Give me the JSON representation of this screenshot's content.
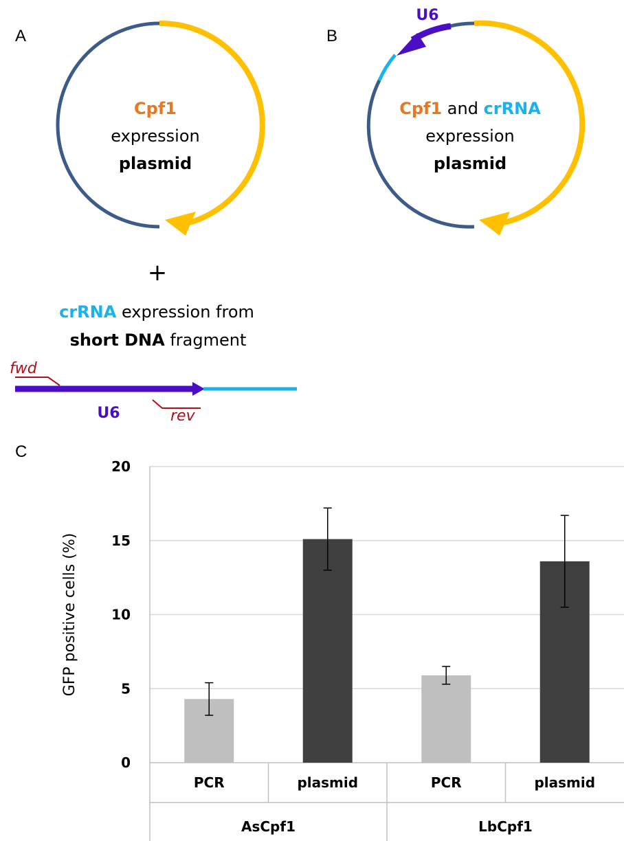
{
  "panels": {
    "a": {
      "label": "A",
      "plasmid": {
        "line1": "Cpf1",
        "line2": "expression",
        "line3": "plasmid"
      },
      "plus": "+",
      "fragment": {
        "line1_colored": "crRNA",
        "line1_rest": " expression from",
        "line2_bold": "short DNA",
        "line2_rest": " fragment",
        "promoter_label": "U6",
        "fwd_primer": "fwd",
        "rev_primer": "rev"
      }
    },
    "b": {
      "label": "B",
      "promoter_label": "U6",
      "plasmid": {
        "line1_part1": "Cpf1",
        "line1_part2": " and ",
        "line1_part3": "crRNA",
        "line2": "expression",
        "line3": "plasmid"
      }
    },
    "c": {
      "label": "C"
    }
  },
  "colors": {
    "cpf1": "#e97722",
    "crrna": "#19b2ea",
    "u6": "#4a0fc4",
    "backbone": "#3c5b88",
    "cpf1_gene": "#fec000",
    "primer": "#b00f16",
    "bar_pcr": "#bfbfbf",
    "bar_plasmid": "#404040",
    "gridline": "#d9d9d9",
    "axis": "#bfbfbf"
  },
  "chart_data": {
    "type": "bar",
    "ylabel": "GFP positive cells (%)",
    "xlabel": "",
    "ylim": [
      0,
      20
    ],
    "yticks": [
      0,
      5,
      10,
      15,
      20
    ],
    "grid": true,
    "groups": [
      "AsCpf1",
      "LbCpf1"
    ],
    "categories": [
      "PCR",
      "plasmid",
      "PCR",
      "plasmid"
    ],
    "values": [
      4.3,
      15.1,
      5.9,
      13.6
    ],
    "errors": [
      1.1,
      2.1,
      0.6,
      3.1
    ]
  }
}
